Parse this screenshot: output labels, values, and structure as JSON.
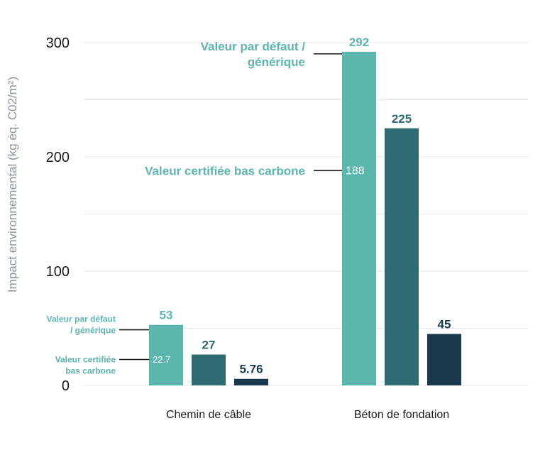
{
  "chart_data": {
    "type": "bar",
    "categories": [
      "Chemin de câble",
      "Béton de fondation"
    ],
    "series": [
      {
        "values": [
          53,
          292
        ],
        "labels": [
          "53",
          "292"
        ],
        "color": "#5bb6ad"
      },
      {
        "values": [
          27,
          225
        ],
        "labels": [
          "27",
          "225"
        ],
        "color": "#2d6a72"
      },
      {
        "values": [
          5.76,
          45
        ],
        "labels": [
          "5.76",
          "45"
        ],
        "color": "#193a4d"
      }
    ],
    "inner_values": [
      22.7,
      188
    ],
    "inner_labels": [
      "22.7",
      "188"
    ],
    "ylabel": "Impact environnemental (kg éq. C02/m²)",
    "ylim": [
      0,
      300
    ],
    "yticks": [
      "0",
      "100",
      "200",
      "300"
    ],
    "grid": true,
    "annotations": {
      "default_lines": [
        "Valeur par défaut /",
        "générique"
      ],
      "certified_line": "Valeur certifiée bas carbone",
      "small_default_lines": [
        "Valeur par défaut",
        "/ générique"
      ],
      "small_certified_lines": [
        "Valeur certifiée",
        "bas carbone"
      ]
    },
    "colors": {
      "accent": "#5bb6ad",
      "label_teal": "#5bb6ad",
      "label_mid": "#2d6a72",
      "label_dark": "#193a4d",
      "grid": "#e6e9ec"
    }
  }
}
